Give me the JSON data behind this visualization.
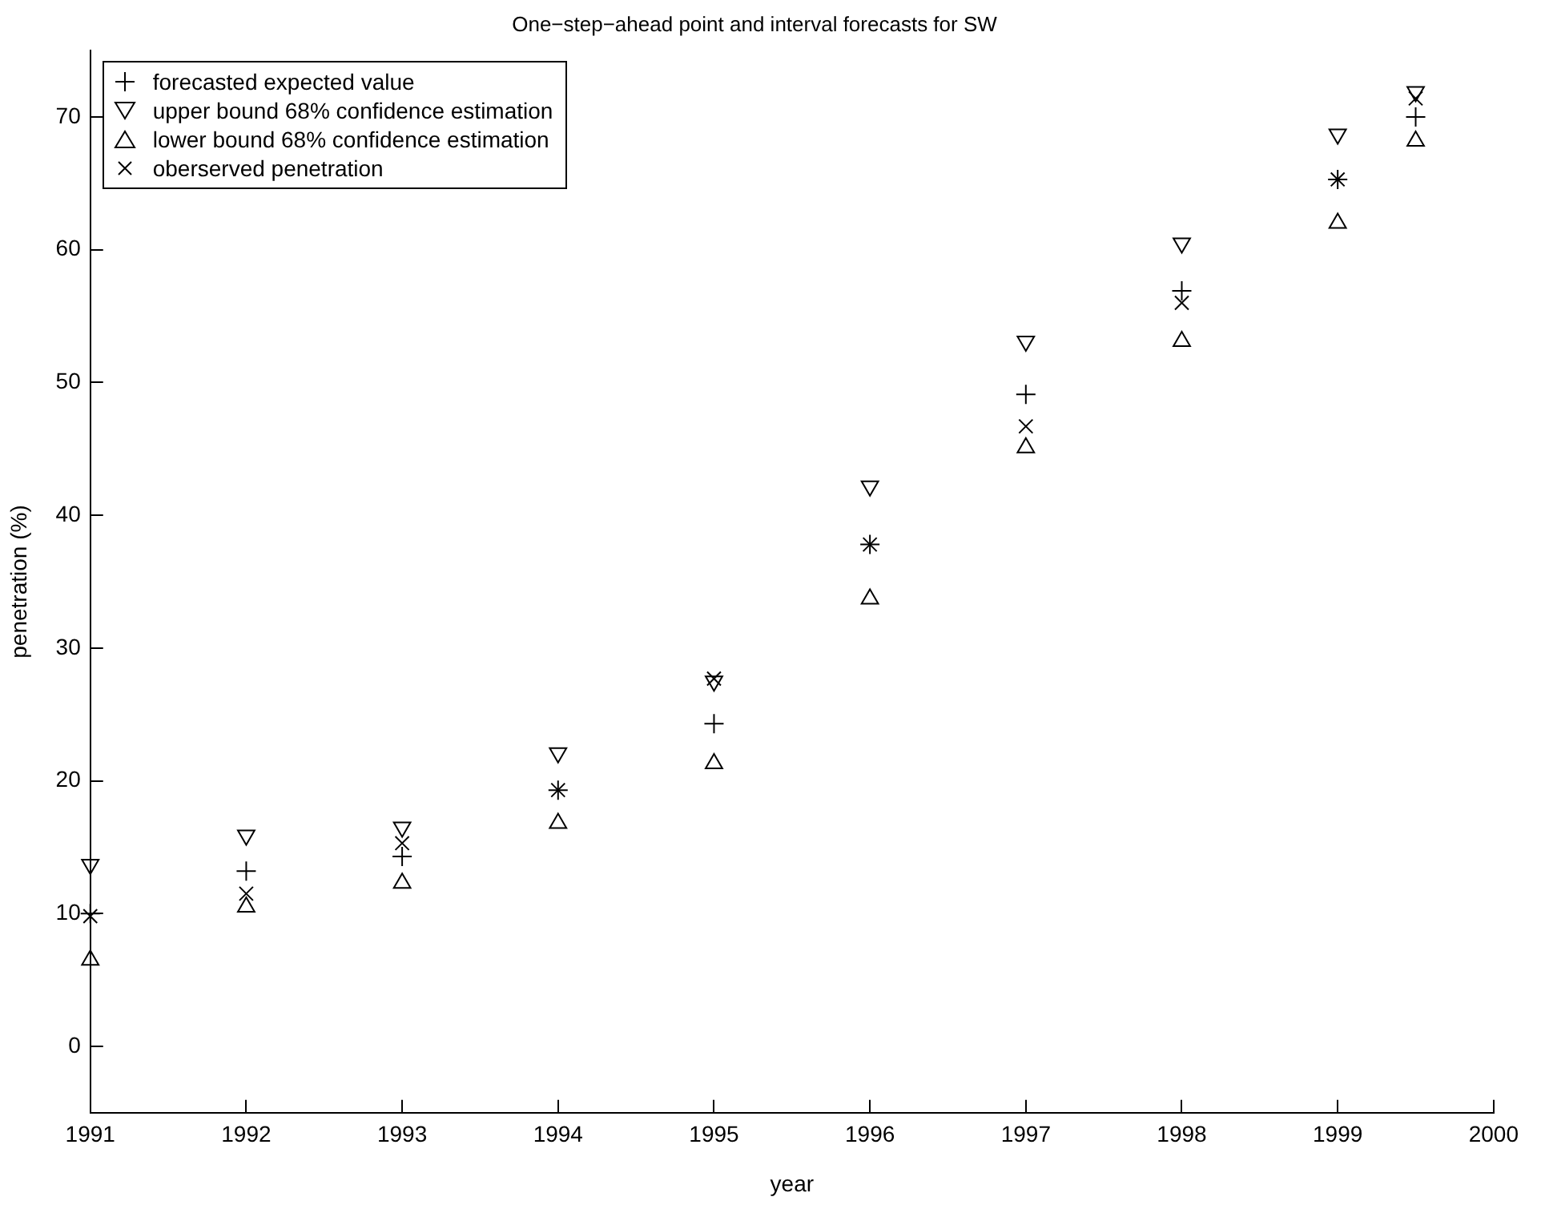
{
  "chart_data": {
    "type": "scatter",
    "title": "One−step−ahead point and interval forecasts for SW",
    "xlabel": "year",
    "ylabel": "penetration (%)",
    "x": [
      1991,
      1992,
      1993,
      1994,
      1995,
      1996,
      1997,
      1998,
      1999,
      1999.5
    ],
    "series": [
      {
        "name": "forecasted expected value",
        "color": "#000000",
        "marker": "cross",
        "values": [
          10.0,
          13.2,
          14.3,
          19.3,
          24.3,
          37.8,
          49.1,
          56.9,
          65.3,
          70.0
        ]
      },
      {
        "name": "upper bound 68% confidence estimation",
        "color": "#000000",
        "marker": "triangle_down",
        "values": [
          13.7,
          15.9,
          16.5,
          22.1,
          27.5,
          42.2,
          53.1,
          60.5,
          68.7,
          71.9
        ]
      },
      {
        "name": "lower bound 68% confidence estimation",
        "color": "#000000",
        "marker": "triangle",
        "values": [
          6.5,
          10.5,
          12.3,
          16.8,
          21.3,
          33.7,
          45.1,
          53.1,
          62.0,
          68.2
        ]
      },
      {
        "name": "oberserved penetration",
        "color": "#000000",
        "marker": "x",
        "values": [
          9.8,
          11.5,
          15.3,
          19.3,
          27.7,
          37.8,
          46.7,
          56.0,
          65.3,
          71.4
        ]
      }
    ],
    "xlim": [
      1991,
      2000
    ],
    "xticks": [
      1991,
      1992,
      1993,
      1994,
      1995,
      1996,
      1997,
      1998,
      1999,
      2000
    ],
    "ylim": [
      -5,
      75
    ],
    "yticks": [
      0,
      10,
      20,
      30,
      40,
      50,
      60,
      70
    ],
    "grid": false,
    "legend": "top left"
  }
}
